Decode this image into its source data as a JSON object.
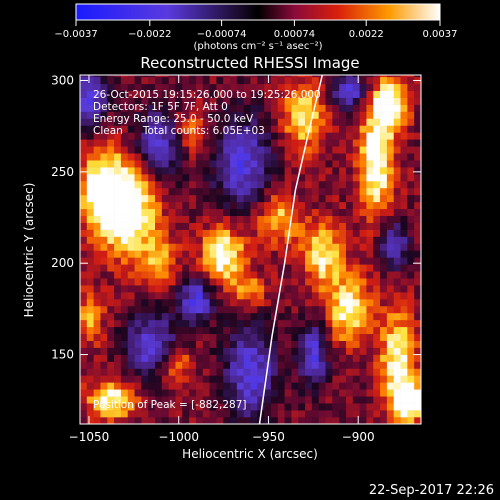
{
  "chart_data": {
    "type": "heatmap",
    "title": "Reconstructed RHESSI Image",
    "xlabel": "Heliocentric X (arcsec)",
    "ylabel": "Heliocentric Y (arcsec)",
    "xlim": [
      -1055,
      -865
    ],
    "ylim": [
      112,
      303
    ],
    "xticks": [
      -1050,
      -1000,
      -950,
      -900
    ],
    "xtick_labels": [
      "−1050",
      "−1000",
      "−950",
      "−900"
    ],
    "yticks": [
      150,
      200,
      250,
      300
    ],
    "ytick_labels": [
      "150",
      "200",
      "250",
      "300"
    ],
    "colorbar": {
      "min": -0.0037,
      "max": 0.0037,
      "ticks": [
        -0.0037,
        -0.0022,
        -0.00074,
        0.00074,
        0.0022,
        0.0037
      ],
      "tick_labels": [
        "−0.0037",
        "−0.0022",
        "−0.00074",
        "0.00074",
        "0.0022",
        "0.0037"
      ],
      "units_label": "(photons cm⁻² s⁻¹ asec⁻²)"
    },
    "annotations": [
      "26-Oct-2015 19:15:26.000 to 19:25:26.000",
      "Detectors: 1F 5F 7F, Att 0",
      "Energy Range: 25.0 - 50.0 keV",
      "Clean      Total counts: 6.05E+03"
    ],
    "peak_label": "Position of Peak = [-882,287]",
    "peak": [
      -882,
      287
    ],
    "limb": [
      [
        -955,
        112
      ],
      [
        -948,
        160
      ],
      [
        -941,
        200
      ],
      [
        -935,
        240
      ],
      [
        -928,
        270
      ],
      [
        -920,
        303
      ]
    ],
    "grid": false,
    "colormap": "blue-purple-red-yellow-white"
  },
  "footer": {
    "timestamp": "22-Sep-2017 22:26"
  }
}
